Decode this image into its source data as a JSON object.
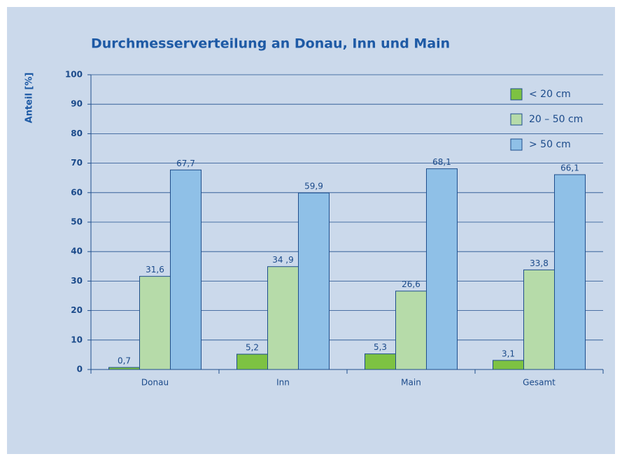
{
  "chart_data": {
    "type": "bar",
    "title": "Durchmesserverteilung an Donau, Inn und Main",
    "y_label": "Anteil [%]",
    "categories": [
      "Donau",
      "Inn",
      "Main",
      "Gesamt"
    ],
    "series": [
      {
        "name": "< 20 cm",
        "color": "#7dc242",
        "values": [
          0.7,
          5.2,
          5.3,
          3.1
        ],
        "value_labels": [
          "0,7",
          "5,2",
          "5,3",
          "3,1"
        ]
      },
      {
        "name": "20 – 50 cm",
        "color": "#b6dba9",
        "values": [
          31.6,
          34.9,
          26.6,
          33.8
        ],
        "value_labels": [
          "31,6",
          "34 ,9",
          "26,6",
          "33,8"
        ]
      },
      {
        "name": "> 50 cm",
        "color": "#8fc0e7",
        "values": [
          67.7,
          59.9,
          68.1,
          66.1
        ],
        "value_labels": [
          "67,7",
          "59,9",
          "68,1",
          "66,1"
        ]
      }
    ],
    "ylim": [
      0,
      100
    ],
    "yticks": [
      0,
      10,
      20,
      30,
      40,
      50,
      60,
      70,
      80,
      90,
      100
    ],
    "grid": true,
    "legend": "upper right"
  }
}
